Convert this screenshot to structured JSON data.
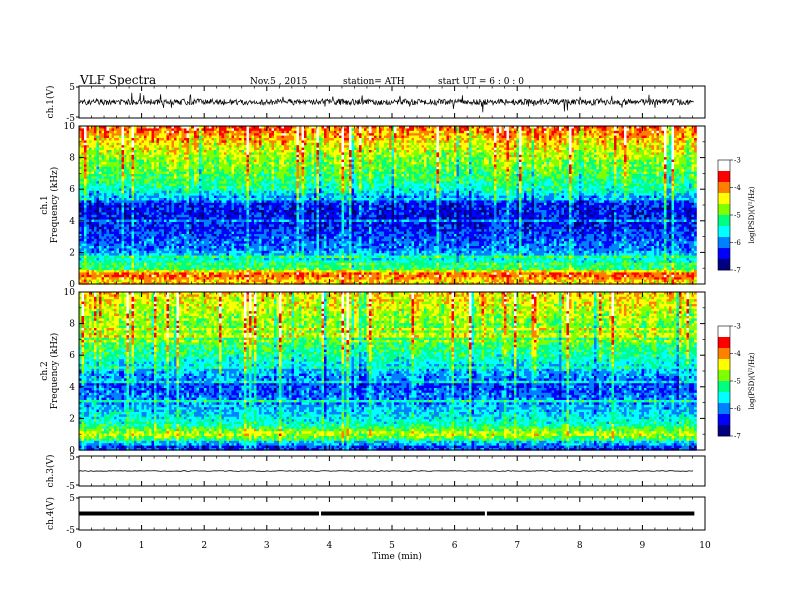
{
  "header": {
    "title": "VLF  Spectra",
    "date": "Nov.5  , 2015",
    "station": "station= ATH",
    "start": "start  UT  =   6  : 0  : 0"
  },
  "chart_data": [
    {
      "id": "ch1-waveform",
      "type": "line",
      "ylabel": "ch.1(V)",
      "ylim": [
        -5,
        5
      ],
      "y_ticks": [
        "5",
        "-5"
      ],
      "xlim": [
        0,
        10
      ],
      "data_end_min": 9.83,
      "baseline": 0,
      "character": "noisy VLF waveform with frequent spikes"
    },
    {
      "id": "ch1-spectrogram",
      "type": "heatmap",
      "ylabel": "ch.1\nFrequency  (kHz)",
      "ylim": [
        0,
        10
      ],
      "y_ticks": [
        "0",
        "2",
        "4",
        "6",
        "8",
        "10"
      ],
      "xlim": [
        0,
        10
      ],
      "data_end_min": 9.83,
      "colorbar": {
        "label": "log(PSD)(V²/Hz)",
        "range": [
          -7,
          -3
        ],
        "ticks": [
          "-3",
          "-4",
          "-5",
          "-6",
          "-7"
        ],
        "colors": [
          "#000080",
          "#0000ff",
          "#0080ff",
          "#00ffff",
          "#00ff80",
          "#80ff00",
          "#ffff00",
          "#ff8000",
          "#ff0000",
          "#ffffff"
        ]
      },
      "profile": [
        {
          "f_khz": 0.2,
          "log_psd": -4.2
        },
        {
          "f_khz": 0.6,
          "log_psd": -3.6
        },
        {
          "f_khz": 1.0,
          "log_psd": -5.2
        },
        {
          "f_khz": 1.6,
          "log_psd": -5.6
        },
        {
          "f_khz": 2.2,
          "log_psd": -6.1
        },
        {
          "f_khz": 3.0,
          "log_psd": -6.3
        },
        {
          "f_khz": 4.0,
          "log_psd": -6.6
        },
        {
          "f_khz": 5.0,
          "log_psd": -6.5
        },
        {
          "f_khz": 6.0,
          "log_psd": -5.4
        },
        {
          "f_khz": 7.0,
          "log_psd": -5.0
        },
        {
          "f_khz": 8.0,
          "log_psd": -4.7
        },
        {
          "f_khz": 9.0,
          "log_psd": -4.2
        },
        {
          "f_khz": 10.0,
          "log_psd": -3.6
        }
      ]
    },
    {
      "id": "ch2-spectrogram",
      "type": "heatmap",
      "ylabel": "ch.2\nFrequency  (kHz)",
      "ylim": [
        0,
        10
      ],
      "y_ticks": [
        "0",
        "2",
        "4",
        "6",
        "8",
        "10"
      ],
      "xlim": [
        0,
        10
      ],
      "data_end_min": 9.83,
      "colorbar": {
        "label": "log(PSD)(V²/Hz)",
        "range": [
          -7,
          -3
        ],
        "ticks": [
          "-3",
          "-4",
          "-5",
          "-6",
          "-7"
        ],
        "colors": [
          "#000080",
          "#0000ff",
          "#0080ff",
          "#00ffff",
          "#00ff80",
          "#80ff00",
          "#ffff00",
          "#ff8000",
          "#ff0000",
          "#ffffff"
        ]
      },
      "profile": [
        {
          "f_khz": 0.2,
          "log_psd": -6.4
        },
        {
          "f_khz": 0.6,
          "log_psd": -5.3
        },
        {
          "f_khz": 1.0,
          "log_psd": -4.5
        },
        {
          "f_khz": 1.6,
          "log_psd": -5.4
        },
        {
          "f_khz": 2.2,
          "log_psd": -5.7
        },
        {
          "f_khz": 3.0,
          "log_psd": -6.1
        },
        {
          "f_khz": 4.0,
          "log_psd": -6.3
        },
        {
          "f_khz": 5.0,
          "log_psd": -5.9
        },
        {
          "f_khz": 6.0,
          "log_psd": -5.3
        },
        {
          "f_khz": 7.0,
          "log_psd": -5.0
        },
        {
          "f_khz": 8.0,
          "log_psd": -4.8
        },
        {
          "f_khz": 9.0,
          "log_psd": -4.5
        },
        {
          "f_khz": 10.0,
          "log_psd": -4.2
        }
      ]
    },
    {
      "id": "ch3-waveform",
      "type": "line",
      "ylabel": "ch.3(V)",
      "ylim": [
        -5,
        5
      ],
      "y_ticks": [
        "5",
        "-5"
      ],
      "xlim": [
        0,
        10
      ],
      "data_end_min": 9.83,
      "baseline": 0,
      "character": "flat low-amplitude signal"
    },
    {
      "id": "ch4-waveform",
      "type": "line",
      "ylabel": "ch.4(V)",
      "ylim": [
        -5,
        5
      ],
      "y_ticks": [
        "5",
        "-5"
      ],
      "xlim": [
        0,
        10
      ],
      "data_end_min": 9.83,
      "baseline": 0,
      "character": "thick constant signal with two small gaps",
      "gaps_min": [
        3.85,
        6.5
      ]
    }
  ],
  "x_axis": {
    "label": "Time  (min)",
    "ticks": [
      "0",
      "1",
      "2",
      "3",
      "4",
      "5",
      "6",
      "7",
      "8",
      "9",
      "10"
    ]
  }
}
